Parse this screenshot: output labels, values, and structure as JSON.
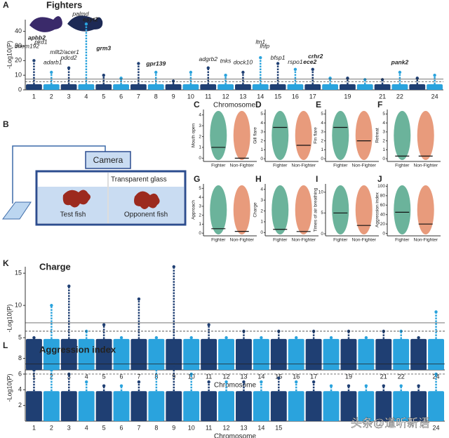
{
  "panel_a": {
    "label": "A",
    "title": "Fighters",
    "y_axis_label": "-Log10(P)",
    "x_axis_label": "Chromosome",
    "ylim": [
      0,
      48
    ],
    "yticks": [
      0,
      10,
      20,
      30,
      40
    ],
    "thresholds": [
      7.3,
      5.5
    ],
    "chromosomes": [
      "1",
      "2",
      "3",
      "4",
      "5",
      "6",
      "7",
      "8",
      "9",
      "10",
      "11",
      "12",
      "13",
      "14",
      "15",
      "16",
      "17",
      null,
      "19",
      null,
      "21",
      "22",
      null,
      "24"
    ],
    "peaks": [
      20,
      12,
      15,
      45,
      10,
      8,
      18,
      12,
      6,
      12,
      15,
      10,
      12,
      22,
      18,
      14,
      14,
      8,
      8,
      7,
      7,
      12,
      8,
      10
    ],
    "genes": [
      {
        "name": "tmem192",
        "chromosome": 1,
        "bold": false
      },
      {
        "name": "apbb2",
        "chromosome": 1,
        "bold": true
      },
      {
        "name": "pkd1",
        "chromosome": 1,
        "bold": false
      },
      {
        "name": "adarb1",
        "chromosome": 2,
        "bold": false
      },
      {
        "name": "mllt2/acer1",
        "chromosome": 3,
        "bold": false
      },
      {
        "name": "pdcd2",
        "chromosome": 3,
        "bold": false
      },
      {
        "name": "palmd",
        "chromosome": 4,
        "bold": false
      },
      {
        "name": "esyt2",
        "chromosome": 4,
        "bold": true
      },
      {
        "name": "grm3",
        "chromosome": 5,
        "bold": true
      },
      {
        "name": "gpr139",
        "chromosome": 8,
        "bold": true
      },
      {
        "name": "adgrb2",
        "chromosome": 11,
        "bold": false
      },
      {
        "name": "tnks",
        "chromosome": 12,
        "bold": false
      },
      {
        "name": "dock10",
        "chromosome": 13,
        "bold": false
      },
      {
        "name": "lhfp",
        "chromosome": 14,
        "bold": false
      },
      {
        "name": "ltn1",
        "chromosome": 14,
        "bold": false
      },
      {
        "name": "bfsp1",
        "chromosome": 15,
        "bold": false
      },
      {
        "name": "rspo1",
        "chromosome": 16,
        "bold": false
      },
      {
        "name": "crhr2",
        "chromosome": 17,
        "bold": true
      },
      {
        "name": "ece2",
        "chromosome": 17,
        "bold": true
      },
      {
        "name": "pank2",
        "chromosome": 22,
        "bold": true
      }
    ]
  },
  "panel_b": {
    "label": "B",
    "camera": "Camera",
    "glass": "Transparent glass",
    "test_fish": "Test fish",
    "opponent_fish": "Opponent fish"
  },
  "violins": [
    {
      "label": "C",
      "y_axis_label": "Mouth open",
      "ylim": [
        -0.3,
        4.5
      ],
      "yticks": [
        0,
        1,
        2,
        3,
        4
      ],
      "categories": [
        "Fighter",
        "Non-Fighter"
      ],
      "medians": [
        1,
        0
      ]
    },
    {
      "label": "D",
      "y_axis_label": "Gill flare",
      "ylim": [
        -0.3,
        5.5
      ],
      "yticks": [
        0,
        1,
        2,
        3,
        4,
        5
      ],
      "categories": [
        "Fighter",
        "Non-Fighter"
      ],
      "medians": [
        3.5,
        1.5
      ]
    },
    {
      "label": "E",
      "y_axis_label": "Fin flare",
      "ylim": [
        -0.3,
        5.5
      ],
      "yticks": [
        0,
        1,
        2,
        3,
        4,
        5
      ],
      "categories": [
        "Fighter",
        "Non-Fighter"
      ],
      "medians": [
        3.5,
        2
      ]
    },
    {
      "label": "F",
      "y_axis_label": "Retreat",
      "ylim": [
        -0.3,
        5.5
      ],
      "yticks": [
        0,
        1,
        2,
        3,
        4,
        5
      ],
      "categories": [
        "Fighter",
        "Non-Fighter"
      ],
      "medians": [
        0.3,
        0.3
      ]
    },
    {
      "label": "G",
      "y_axis_label": "Approach",
      "ylim": [
        -0.3,
        5.5
      ],
      "yticks": [
        0,
        1,
        2,
        3,
        4,
        5
      ],
      "categories": [
        "Fighter",
        "Non-Fighter"
      ],
      "medians": [
        0.5,
        0.2
      ]
    },
    {
      "label": "H",
      "y_axis_label": "Charge",
      "ylim": [
        -0.3,
        4.5
      ],
      "yticks": [
        0,
        1,
        2,
        3,
        4
      ],
      "categories": [
        "Fighter",
        "Non-Fighter"
      ],
      "medians": [
        0.3,
        0.1
      ]
    },
    {
      "label": "I",
      "y_axis_label": "Times of air breathing",
      "ylim": [
        -0.5,
        12
      ],
      "yticks": [
        0,
        5,
        10
      ],
      "categories": [
        "Fighter",
        "Non-Fighter"
      ],
      "medians": [
        5,
        2
      ]
    },
    {
      "label": "J",
      "y_axis_label": "Aggression index",
      "ylim": [
        -5,
        105
      ],
      "yticks": [
        0,
        20,
        40,
        60,
        80,
        100
      ],
      "categories": [
        "Fighter",
        "Non-Fighter"
      ],
      "medians": [
        45,
        20
      ]
    }
  ],
  "panel_k": {
    "label": "K",
    "title": "Charge",
    "y_axis_label": "-Log10(P)",
    "x_axis_label": "Chromosome",
    "ylim": [
      0,
      16
    ],
    "yticks": [
      5,
      10,
      15
    ],
    "thresholds": [
      7.3,
      6
    ],
    "chromosomes": [
      "1",
      "2",
      "3",
      "4",
      "5",
      "6",
      "7",
      "8",
      "9",
      "10",
      "11",
      "12",
      "13",
      "14",
      "15",
      "16",
      "17",
      null,
      "19",
      null,
      "21",
      "22",
      null,
      "24"
    ],
    "peaks": [
      5,
      10,
      13,
      6,
      7,
      5,
      11,
      5,
      16,
      5,
      7,
      5,
      6,
      5,
      6,
      5,
      6,
      5,
      6,
      5,
      6,
      6,
      5,
      9
    ]
  },
  "panel_l": {
    "label": "L",
    "title": "Aggression index",
    "y_axis_label": "-Log10(P)",
    "x_axis_label": "Chromosome",
    "ylim": [
      0,
      8.5
    ],
    "yticks": [
      2,
      4,
      6,
      8
    ],
    "thresholds": [
      7.3,
      6
    ],
    "chromosomes": [
      "1",
      "2",
      "3",
      "4",
      "5",
      "6",
      "7",
      "8",
      "9",
      "10",
      "11",
      "12",
      "13",
      "14",
      "15",
      null,
      null,
      null,
      null,
      null,
      null,
      null,
      null,
      "24"
    ],
    "peaks": [
      6.5,
      6.5,
      6,
      5,
      4.5,
      4.5,
      5,
      7.8,
      7.7,
      6,
      5,
      5,
      5,
      5,
      5.5,
      5,
      5,
      4.5,
      4.5,
      4.5,
      4.5,
      4.5,
      4.5,
      6
    ]
  },
  "watermark": "头条@道听新语"
}
